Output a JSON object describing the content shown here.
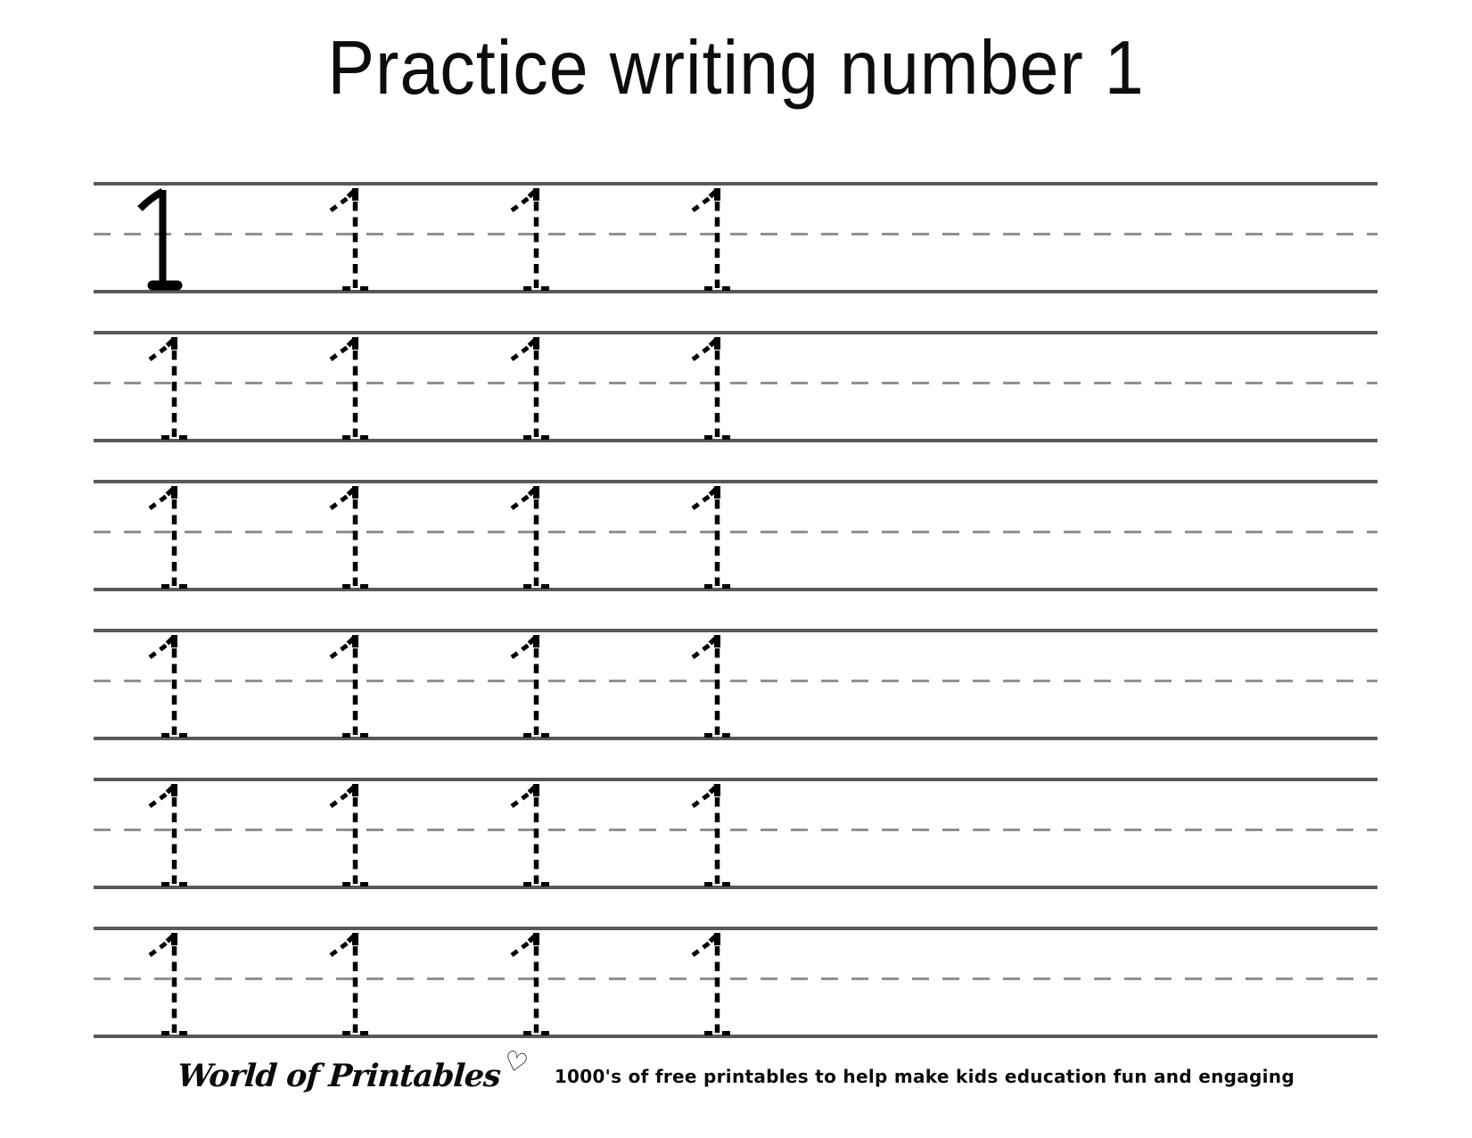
{
  "page": {
    "title": "Practice writing number 1"
  },
  "worksheet": {
    "numeral": "1",
    "rows": [
      {
        "slots": [
          "solid",
          "trace",
          "trace",
          "trace"
        ]
      },
      {
        "slots": [
          "trace",
          "trace",
          "trace",
          "trace"
        ]
      },
      {
        "slots": [
          "trace",
          "trace",
          "trace",
          "trace"
        ]
      },
      {
        "slots": [
          "trace",
          "trace",
          "trace",
          "trace"
        ]
      },
      {
        "slots": [
          "trace",
          "trace",
          "trace",
          "trace"
        ]
      },
      {
        "slots": [
          "trace",
          "trace",
          "trace",
          "trace"
        ]
      }
    ]
  },
  "footer": {
    "brand": "World of Printables",
    "heart_icon": "♡",
    "tagline": "1000's of free printables to help make kids education fun and engaging"
  },
  "colors": {
    "guide_line": "#58595b",
    "guide_midline": "#8f9193",
    "ink": "#000000",
    "background": "#ffffff"
  }
}
